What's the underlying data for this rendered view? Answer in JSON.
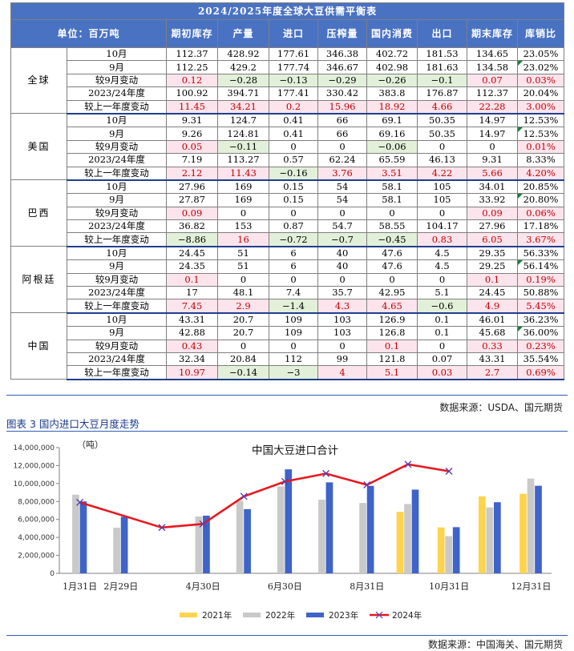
{
  "table": {
    "title": "2024/2025年度全球大豆供需平衡表",
    "headers": [
      "单位：百万吨",
      "期初库存",
      "产量",
      "进口",
      "压榨量",
      "国内消费",
      "出口",
      "期末库存",
      "库销比"
    ],
    "groups": [
      {
        "region": "全球",
        "rows": [
          {
            "label": "10月",
            "cells": [
              "112.37",
              "428.92",
              "177.61",
              "346.38",
              "402.72",
              "181.53",
              "134.65",
              "23.05%"
            ]
          },
          {
            "label": "9月",
            "cells": [
              "112.25",
              "429.2",
              "177.74",
              "346.67",
              "402.98",
              "181.63",
              "134.58",
              "23.02%"
            ]
          },
          {
            "label": "较9月变动",
            "cells": [
              "0.12",
              "−0.28",
              "−0.13",
              "−0.29",
              "−0.26",
              "−0.1",
              "0.07",
              "0.03%"
            ]
          },
          {
            "label": "2023/24年度",
            "cells": [
              "100.92",
              "394.71",
              "177.41",
              "330.42",
              "383.8",
              "176.87",
              "112.37",
              "20.04%"
            ]
          },
          {
            "label": "较上一年度变动",
            "cells": [
              "11.45",
              "34.21",
              "0.2",
              "15.96",
              "18.92",
              "4.66",
              "22.28",
              "3.00%"
            ]
          }
        ]
      },
      {
        "region": "美国",
        "rows": [
          {
            "label": "10月",
            "cells": [
              "9.31",
              "124.7",
              "0.41",
              "66",
              "69.1",
              "50.35",
              "14.97",
              "12.53%"
            ]
          },
          {
            "label": "9月",
            "cells": [
              "9.26",
              "124.81",
              "0.41",
              "66",
              "69.16",
              "50.35",
              "14.97",
              "12.53%"
            ]
          },
          {
            "label": "较9月变动",
            "cells": [
              "0.05",
              "−0.11",
              "0",
              "0",
              "−0.06",
              "0",
              "0",
              "0.01%"
            ]
          },
          {
            "label": "2023/24年度",
            "cells": [
              "7.19",
              "113.27",
              "0.57",
              "62.24",
              "65.59",
              "46.13",
              "9.31",
              "8.33%"
            ]
          },
          {
            "label": "较上一年度变动",
            "cells": [
              "2.12",
              "11.43",
              "−0.16",
              "3.76",
              "3.51",
              "4.22",
              "5.66",
              "4.20%"
            ]
          }
        ]
      },
      {
        "region": "巴西",
        "rows": [
          {
            "label": "10月",
            "cells": [
              "27.96",
              "169",
              "0.15",
              "54",
              "58.1",
              "105",
              "34.01",
              "20.85%"
            ]
          },
          {
            "label": "9月",
            "cells": [
              "27.87",
              "169",
              "0.15",
              "54",
              "58.1",
              "105",
              "33.92",
              "20.80%"
            ]
          },
          {
            "label": "较9月变动",
            "cells": [
              "0.09",
              "0",
              "0",
              "0",
              "0",
              "0",
              "0.09",
              "0.06%"
            ]
          },
          {
            "label": "2023/24年度",
            "cells": [
              "36.82",
              "153",
              "0.87",
              "54.7",
              "58.55",
              "104.17",
              "27.96",
              "17.18%"
            ]
          },
          {
            "label": "较上一年度变动",
            "cells": [
              "−8.86",
              "16",
              "−0.72",
              "−0.7",
              "−0.45",
              "0.83",
              "6.05",
              "3.67%"
            ]
          }
        ]
      },
      {
        "region": "阿根廷",
        "rows": [
          {
            "label": "10月",
            "cells": [
              "24.45",
              "51",
              "6",
              "40",
              "47.6",
              "4.5",
              "29.35",
              "56.33%"
            ]
          },
          {
            "label": "9月",
            "cells": [
              "24.35",
              "51",
              "6",
              "40",
              "47.6",
              "4.5",
              "29.25",
              "56.14%"
            ]
          },
          {
            "label": "较9月变动",
            "cells": [
              "0.1",
              "0",
              "0",
              "0",
              "0",
              "0",
              "0.1",
              "0.19%"
            ]
          },
          {
            "label": "2023/24年度",
            "cells": [
              "17",
              "48.1",
              "7.4",
              "35.7",
              "42.95",
              "5.1",
              "24.45",
              "50.88%"
            ]
          },
          {
            "label": "较上一年度变动",
            "cells": [
              "7.45",
              "2.9",
              "−1.4",
              "4.3",
              "4.65",
              "−0.6",
              "4.9",
              "5.45%"
            ]
          }
        ]
      },
      {
        "region": "中国",
        "rows": [
          {
            "label": "10月",
            "cells": [
              "43.31",
              "20.7",
              "109",
              "103",
              "126.9",
              "0.1",
              "46.01",
              "36.23%"
            ]
          },
          {
            "label": "9月",
            "cells": [
              "42.88",
              "20.7",
              "109",
              "103",
              "126.8",
              "0.1",
              "45.68",
              "36.00%"
            ]
          },
          {
            "label": "较9月变动",
            "cells": [
              "0.43",
              "0",
              "0",
              "0",
              "0.1",
              "0",
              "0.33",
              "0.23%"
            ]
          },
          {
            "label": "2023/24年度",
            "cells": [
              "32.34",
              "20.84",
              "112",
              "99",
              "121.8",
              "0.07",
              "43.31",
              "35.54%"
            ]
          },
          {
            "label": "较上一年度变动",
            "cells": [
              "10.97",
              "−0.14",
              "−3",
              "4",
              "5.1",
              "0.03",
              "2.7",
              "0.69%"
            ]
          }
        ]
      }
    ]
  },
  "source1": "数据来源：USDA、国元期货",
  "figure_title": "图表 3  国内进口大豆月度走势",
  "source2": "数据来源：中国海关、国元期货",
  "colors": {
    "header": "#4a72c3",
    "neg_fill": "#e2f0d9",
    "pos_fill": "#fce4ec",
    "pos_text": "#c00000",
    "s2021": "#ffd44d",
    "s2022": "#c9c9c9",
    "s2023": "#3e63c9",
    "s2024": "#e8181f"
  },
  "chart_data": {
    "type": "bar",
    "title": "中国大豆进口合计",
    "ylabel": "（吨）",
    "ylim": [
      0,
      14000000
    ],
    "yticks": [
      "0",
      "2,000,000",
      "4,000,000",
      "6,000,000",
      "8,000,000",
      "10,000,000",
      "12,000,000",
      "14,000,000"
    ],
    "months": [
      "1月31日",
      "2月29日",
      "3月31日",
      "4月30日",
      "5月31日",
      "6月30日",
      "7月31日",
      "8月31日",
      "9月30日",
      "10月31日",
      "11月30日",
      "12月31日"
    ],
    "xtick_labels": [
      "1月31日",
      "2月29日",
      "4月30日",
      "6月30日",
      "8月31日",
      "10月31日",
      "12月31日"
    ],
    "series": [
      {
        "name": "2021年",
        "kind": "bar",
        "values": [
          null,
          null,
          null,
          null,
          null,
          null,
          null,
          null,
          6850000,
          5120000,
          8570000,
          8860000
        ]
      },
      {
        "name": "2022年",
        "kind": "bar",
        "values": [
          8760000,
          5080000,
          null,
          6330000,
          8100000,
          9680000,
          8200000,
          7840000,
          7720000,
          4140000,
          7340000,
          10550000
        ]
      },
      {
        "name": "2023年",
        "kind": "bar",
        "values": [
          8010000,
          6300000,
          null,
          6420000,
          7150000,
          11580000,
          10130000,
          9740000,
          9320000,
          5140000,
          7920000,
          9750000
        ]
      },
      {
        "name": "2024年",
        "kind": "line",
        "values": [
          7900000,
          null,
          5100000,
          5500000,
          8570000,
          10220000,
          11110000,
          9850000,
          12140000,
          11370000,
          null,
          null
        ]
      }
    ]
  }
}
